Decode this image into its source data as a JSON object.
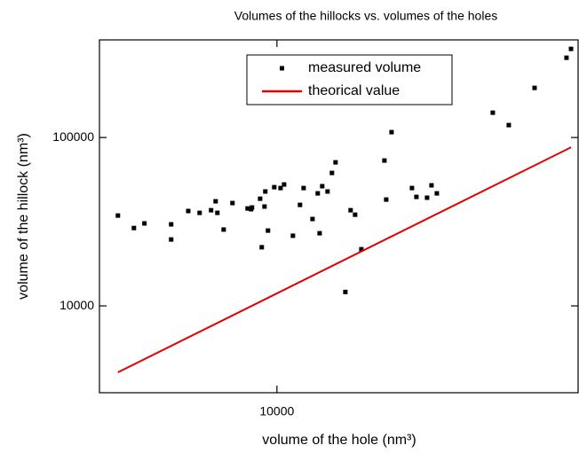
{
  "chart_data": {
    "type": "scatter",
    "title": "Volumes of the hillocks vs. volumes of the holes",
    "xlabel": "volume of the hole (nm³)",
    "ylabel": "volume of the hillock (nm³)",
    "log_x": true,
    "log_y": true,
    "xlim": [
      2990,
      77600
    ],
    "ylim": [
      3050,
      380000
    ],
    "xticks": [
      10000
    ],
    "yticks": [
      10000,
      100000
    ],
    "legend": "top",
    "series": [
      {
        "name": "measured volume",
        "color": "#000000",
        "style": "markers",
        "x": [
          3390,
          3780,
          4060,
          4870,
          4870,
          5470,
          5910,
          6390,
          6590,
          6670,
          6960,
          7390,
          8190,
          8390,
          8440,
          8920,
          9020,
          9190,
          9240,
          9410,
          9820,
          10250,
          10500,
          11150,
          11700,
          11990,
          12740,
          13200,
          13370,
          13610,
          14110,
          14540,
          14900,
          15930,
          16510,
          17020,
          17760,
          20780,
          21030,
          21810,
          25060,
          25830,
          27770,
          28620,
          29680,
          43430,
          48420,
          57700,
          71700,
          73940
        ],
        "values": [
          34400,
          29000,
          30900,
          30500,
          24800,
          36600,
          35700,
          37000,
          41800,
          35700,
          28400,
          40800,
          37900,
          37500,
          38400,
          43300,
          22300,
          38900,
          47800,
          28000,
          50700,
          50100,
          52600,
          26100,
          39800,
          50100,
          32800,
          46600,
          27000,
          51400,
          47800,
          61600,
          71200,
          12100,
          37000,
          34800,
          21700,
          73000,
          42800,
          107600,
          50100,
          44400,
          43900,
          52000,
          46600,
          140400,
          118500,
          197100,
          297700,
          336000
        ]
      },
      {
        "name": "theorical value",
        "color": "#e00000",
        "style": "line",
        "x": [
          3390,
          74000
        ],
        "values": [
          4030,
          87500
        ]
      }
    ]
  }
}
